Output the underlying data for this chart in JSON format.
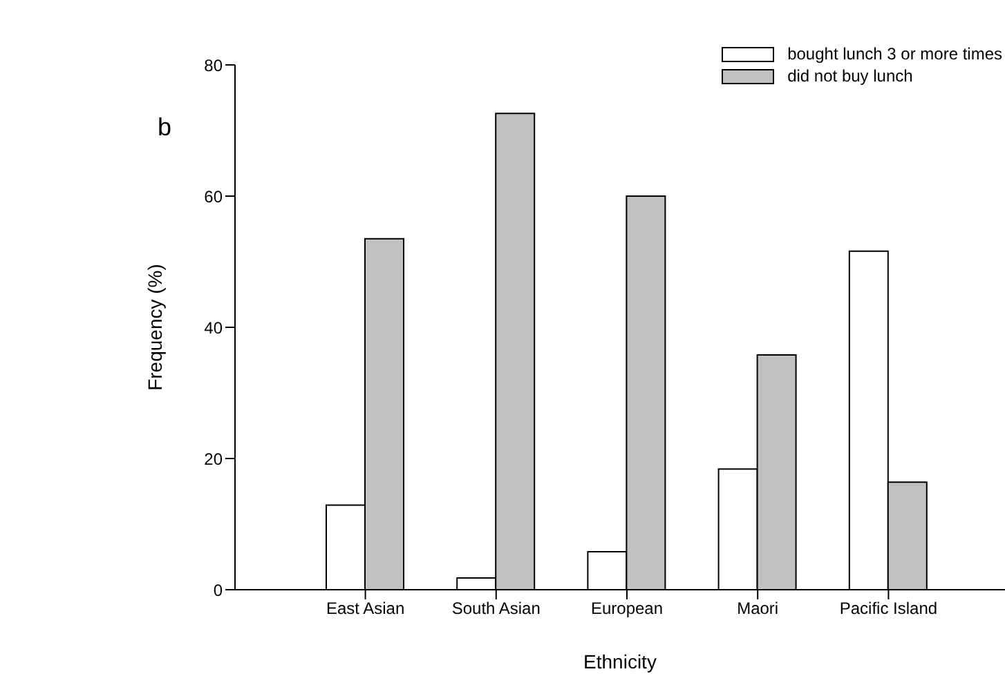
{
  "chart_data": {
    "type": "bar",
    "title": "b",
    "xlabel": "Ethnicity",
    "ylabel": "Frequency (%)",
    "categories": [
      "East Asian",
      "South Asian",
      "European",
      "Maori",
      "Pacific Island"
    ],
    "series": [
      {
        "name": "bought lunch 3 or more times",
        "color": "#ffffff",
        "values": [
          12.9,
          1.8,
          5.8,
          18.4,
          51.6
        ]
      },
      {
        "name": "did not buy lunch",
        "color": "#c0c0c0",
        "values": [
          53.5,
          72.6,
          60,
          35.8,
          16.4
        ]
      }
    ],
    "ylim": [
      0,
      80
    ],
    "yticks": [
      0,
      20,
      40,
      60,
      80
    ],
    "grid": false,
    "legend": "top right"
  }
}
